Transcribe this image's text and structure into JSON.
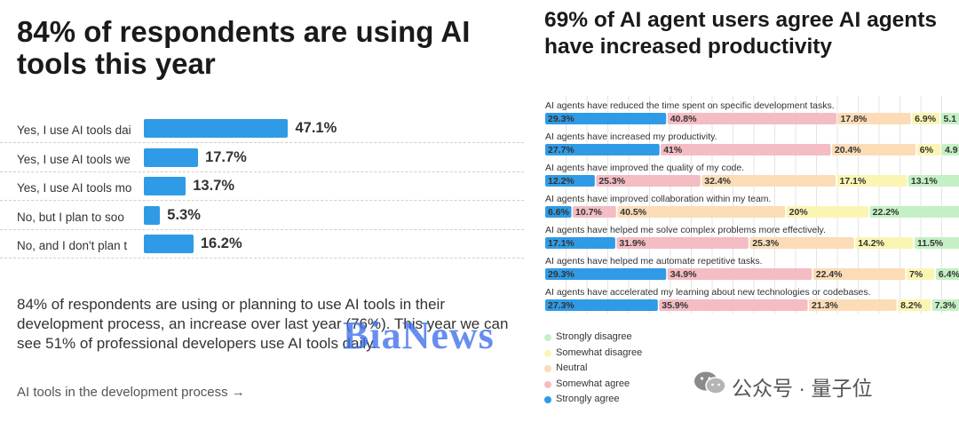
{
  "left": {
    "title": "84% of respondents are using AI tools this year",
    "body": "84% of respondents are using or planning to use AI tools in their development process, an increase over last year (76%). This year we can see 51% of professional developers use AI tools daily.",
    "link": "AI tools in the development process →"
  },
  "right": {
    "title": "69% of AI agent users agree AI agents have increased productivity"
  },
  "colors": {
    "bar_blue": "#2f9be6",
    "strongly_agree": "#2f9be6",
    "somewhat_agree": "#f4bcc3",
    "neutral": "#fbdcb7",
    "somewhat_disagree": "#fbf5b4",
    "strongly_disagree": "#c5f0c5"
  },
  "chart_data": [
    {
      "type": "bar",
      "orientation": "horizontal",
      "categories": [
        "Yes, I use AI tools daily",
        "Yes, I use AI tools weekly",
        "Yes, I use AI tools monthly or infrequently",
        "No, but I plan to soon",
        "No, and I don't plan to"
      ],
      "category_display": [
        "Yes, I use AI tools dai",
        "Yes, I use AI tools we",
        "Yes, I use AI tools mo",
        "No, but I plan to soo",
        "No, and I don't plan t"
      ],
      "values": [
        47.1,
        17.7,
        13.7,
        5.3,
        16.2
      ],
      "value_labels": [
        "47.1%",
        "17.7%",
        "13.7%",
        "5.3%",
        "16.2%"
      ],
      "xlim": [
        0,
        100
      ],
      "grid": false
    },
    {
      "type": "bar",
      "orientation": "horizontal",
      "stacked": true,
      "categories": [
        "AI agents have reduced the time spent on specific development tasks.",
        "AI agents have increased my productivity.",
        "AI agents have improved the quality of my code.",
        "AI agents have improved collaboration within my team.",
        "AI agents have helped me solve complex problems more effectively.",
        "AI agents have helped me automate repetitive tasks.",
        "AI agents have accelerated my learning about new technologies or codebases."
      ],
      "series": [
        {
          "name": "Strongly agree",
          "values": [
            29.3,
            27.7,
            12.2,
            6.6,
            17.1,
            29.3,
            27.3
          ],
          "labels": [
            "29.3%",
            "27.7%",
            "12.2%",
            "6.6%",
            "17.1%",
            "29.3%",
            "27.3%"
          ]
        },
        {
          "name": "Somewhat agree",
          "values": [
            40.8,
            41,
            25.3,
            10.7,
            31.9,
            34.9,
            35.9
          ],
          "labels": [
            "40.8%",
            "41%",
            "25.3%",
            "10.7%",
            "31.9%",
            "34.9%",
            "35.9%"
          ]
        },
        {
          "name": "Neutral",
          "values": [
            17.8,
            20.4,
            32.4,
            40.5,
            25.3,
            22.4,
            21.3
          ],
          "labels": [
            "17.8%",
            "20.4%",
            "32.4%",
            "40.5%",
            "25.3%",
            "22.4%",
            "21.3%"
          ]
        },
        {
          "name": "Somewhat disagree",
          "values": [
            6.9,
            6,
            17.1,
            20,
            14.2,
            7,
            8.2
          ],
          "labels": [
            "6.9%",
            "6%",
            "17.1%",
            "20%",
            "14.2%",
            "7%",
            "8.2%"
          ]
        },
        {
          "name": "Strongly disagree",
          "values": [
            5.1,
            4.9,
            13.1,
            22.2,
            11.5,
            6.4,
            7.3
          ],
          "labels": [
            "5.1",
            "4.9",
            "13.1%",
            "22.2%",
            "11.5%",
            "6.4%",
            "7.3%"
          ]
        }
      ],
      "legend": {
        "placement": "bottom-left",
        "entries": [
          "Strongly disagree",
          "Somewhat disagree",
          "Neutral",
          "Somewhat agree",
          "Strongly agree"
        ]
      },
      "xlim": [
        0,
        100
      ],
      "grid": true
    }
  ],
  "watermarks": {
    "bianews": "BiaNews",
    "wechat_text": "公众号 · 量子位"
  }
}
